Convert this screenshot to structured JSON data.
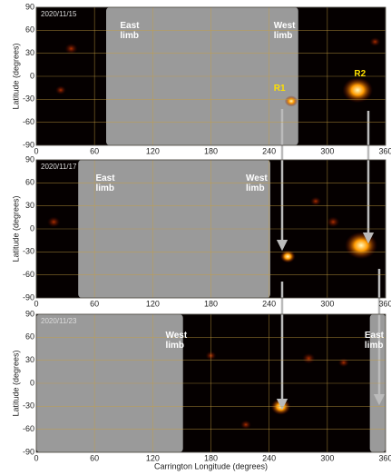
{
  "panels": [
    {
      "date": "2020/11/15",
      "labels": [
        "East limb",
        "West limb",
        "R1",
        "R2"
      ],
      "xticks": [
        0,
        60,
        120,
        180,
        240,
        300,
        360
      ],
      "yticks": [
        90,
        60,
        30,
        0,
        -30,
        -60,
        -90
      ],
      "y_axis_label": "Latitude (degrees)"
    },
    {
      "date": "2020/11/17",
      "labels": [
        "East limb",
        "West limb"
      ],
      "xticks": [
        0,
        60,
        120,
        180,
        240,
        300,
        360
      ],
      "yticks": [
        90,
        60,
        30,
        0,
        -30,
        -60,
        -90
      ],
      "y_axis_label": "Latitude (degrees)"
    },
    {
      "date": "2020/11/23",
      "labels": [
        "West limb",
        "East limb"
      ],
      "xticks": [
        0,
        60,
        120,
        180,
        240,
        300,
        360
      ],
      "yticks": [
        90,
        60,
        30,
        0,
        -30,
        -60,
        -90
      ],
      "y_axis_label": "Latitude (degrees)"
    }
  ],
  "x_axis_label": "Carrington Longitude (degrees)"
}
